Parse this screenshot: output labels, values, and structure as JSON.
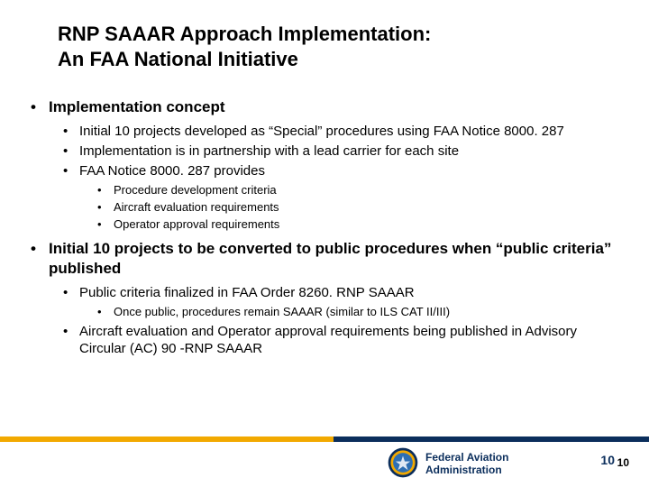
{
  "title": {
    "line1": "RNP SAAAR Approach Implementation:",
    "line2": "An FAA National Initiative"
  },
  "bullets": [
    {
      "text": "Implementation concept",
      "children": [
        {
          "text": "Initial 10 projects developed as “Special” procedures using FAA Notice 8000. 287"
        },
        {
          "text": "Implementation is in partnership with a lead carrier for each site"
        },
        {
          "text": "FAA Notice 8000. 287 provides",
          "children": [
            {
              "text": "Procedure development criteria"
            },
            {
              "text": "Aircraft evaluation requirements"
            },
            {
              "text": "Operator approval requirements"
            }
          ]
        }
      ]
    },
    {
      "text": "Initial 10 projects to be converted to public procedures when “public criteria” published",
      "children": [
        {
          "text": "Public criteria finalized in FAA Order 8260. RNP SAAAR",
          "children": [
            {
              "text": "Once public, procedures remain SAAAR (similar to ILS CAT II/III)"
            }
          ]
        },
        {
          "text": "Aircraft evaluation and Operator approval requirements being published in Advisory Circular (AC) 90 -RNP SAAAR"
        }
      ]
    }
  ],
  "footer": {
    "org_line1": "Federal Aviation",
    "org_line2": "Administration",
    "page_left": "10",
    "page_right": "10"
  },
  "colors": {
    "navy": "#0b2e5c",
    "gold": "#f2a900",
    "seal_inner": "#2e6fb3",
    "seal_ring": "#0b2e5c"
  }
}
